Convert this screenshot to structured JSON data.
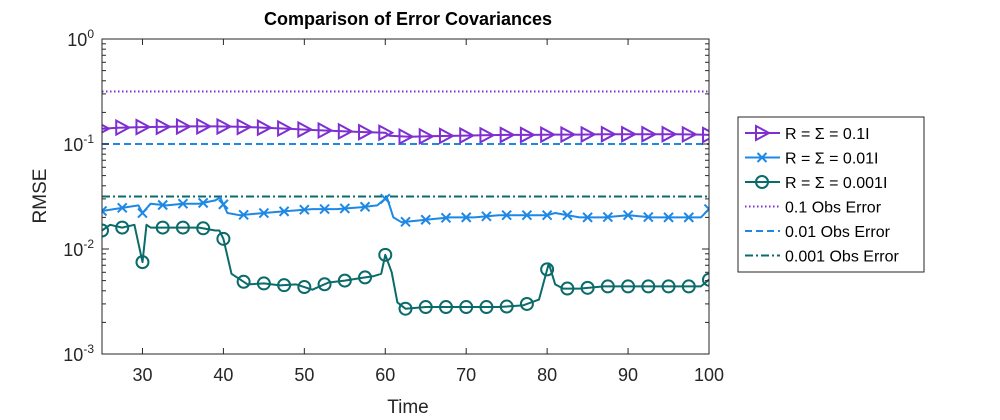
{
  "chart_data": {
    "type": "line",
    "title": "Comparison of Error Covariances",
    "xlabel": "Time",
    "ylabel": "RMSE",
    "yscale": "log",
    "xlim": [
      25,
      100
    ],
    "ylim": [
      0.001,
      1
    ],
    "xticks": [
      30,
      40,
      50,
      60,
      70,
      80,
      90,
      100
    ],
    "xtick_labels": [
      "30",
      "40",
      "50",
      "60",
      "70",
      "80",
      "90",
      "100"
    ],
    "yticks": [
      {
        "value": 0.001,
        "base": "10",
        "exp": "-3"
      },
      {
        "value": 0.01,
        "base": "10",
        "exp": "-2"
      },
      {
        "value": 0.1,
        "base": "10",
        "exp": "-1"
      },
      {
        "value": 1,
        "base": "10",
        "exp": "0"
      }
    ],
    "grid": false,
    "legend_position": "outside-right",
    "series": [
      {
        "name": "R = Σ = 0.1I",
        "color": "#7e2fd1",
        "style": "solid",
        "marker": "triangle-right",
        "marker_every": 2.5,
        "x": [
          25,
          27,
          30,
          33,
          36,
          39,
          42,
          45,
          48,
          51,
          54,
          57,
          60,
          60.5,
          63,
          66,
          69,
          72,
          75,
          78,
          81,
          84,
          87,
          90,
          93,
          96,
          99,
          100
        ],
        "y": [
          0.14,
          0.143,
          0.145,
          0.146,
          0.147,
          0.147,
          0.146,
          0.143,
          0.14,
          0.136,
          0.133,
          0.13,
          0.128,
          0.12,
          0.117,
          0.119,
          0.12,
          0.121,
          0.122,
          0.122,
          0.123,
          0.123,
          0.124,
          0.124,
          0.124,
          0.124,
          0.123,
          0.122
        ]
      },
      {
        "name": "R = Σ = 0.01I",
        "color": "#1e88e5",
        "style": "solid",
        "marker": "x",
        "marker_every": 2.5,
        "x": [
          25,
          26.5,
          28,
          29.5,
          30,
          31,
          33,
          35,
          37,
          38,
          39,
          39.6,
          40.5,
          42,
          45,
          48,
          51,
          54,
          57,
          59,
          60.2,
          61,
          62,
          65,
          68,
          71,
          74,
          77,
          80,
          81,
          84,
          87,
          90,
          93,
          96,
          99,
          100
        ],
        "y": [
          0.023,
          0.024,
          0.025,
          0.026,
          0.022,
          0.027,
          0.026,
          0.027,
          0.027,
          0.028,
          0.029,
          0.031,
          0.022,
          0.021,
          0.022,
          0.023,
          0.024,
          0.024,
          0.025,
          0.026,
          0.031,
          0.02,
          0.018,
          0.019,
          0.02,
          0.02,
          0.021,
          0.021,
          0.021,
          0.022,
          0.02,
          0.02,
          0.021,
          0.02,
          0.02,
          0.02,
          0.024
        ]
      },
      {
        "name": "R = Σ = 0.001I",
        "color": "#0b6a6a",
        "style": "solid",
        "marker": "circle",
        "marker_every": 2.5,
        "x": [
          25,
          26,
          27.5,
          29,
          30,
          30.5,
          31,
          33,
          35,
          37,
          39,
          39.5,
          40,
          41,
          43,
          45,
          47,
          49,
          51,
          53,
          55,
          57,
          58.5,
          59.5,
          60,
          60.8,
          61.5,
          62.5,
          65,
          68,
          71,
          74,
          77,
          79,
          80.2,
          81,
          82,
          84,
          87,
          90,
          93,
          96,
          99,
          100
        ],
        "y": [
          0.015,
          0.017,
          0.016,
          0.017,
          0.0075,
          0.017,
          0.016,
          0.016,
          0.016,
          0.016,
          0.015,
          0.015,
          0.0125,
          0.0058,
          0.0046,
          0.0047,
          0.0045,
          0.0046,
          0.0041,
          0.0048,
          0.005,
          0.0053,
          0.0055,
          0.0058,
          0.0088,
          0.006,
          0.0031,
          0.0027,
          0.0028,
          0.0028,
          0.0028,
          0.0028,
          0.0029,
          0.0033,
          0.0073,
          0.0046,
          0.0042,
          0.0042,
          0.0044,
          0.0044,
          0.0044,
          0.0044,
          0.0044,
          0.0051
        ]
      },
      {
        "name": "0.1 Obs Error",
        "color": "#7e2fd1",
        "style": "dotted",
        "marker": "none",
        "x": [
          25,
          100
        ],
        "y": [
          0.316,
          0.316
        ]
      },
      {
        "name": "0.01 Obs Error",
        "color": "#1e88e5",
        "style": "dashed",
        "marker": "none",
        "x": [
          25,
          100
        ],
        "y": [
          0.1,
          0.1
        ]
      },
      {
        "name": "0.001 Obs Error",
        "color": "#0b6a6a",
        "style": "dashdot",
        "marker": "none",
        "x": [
          25,
          100
        ],
        "y": [
          0.0316,
          0.0316
        ]
      }
    ]
  }
}
